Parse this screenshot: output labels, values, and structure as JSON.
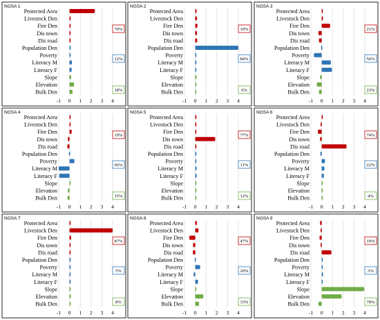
{
  "colors": {
    "economic": "#c00000",
    "social": "#2e75b6",
    "environmental": "#70ad47",
    "panel_border": "#222222",
    "grid": "#d9d9d9"
  },
  "chart_data": [
    {
      "type": "bar",
      "orientation": "horizontal",
      "title": "NGSA 1",
      "categories": [
        "Protected Area",
        "Livestock Den",
        "Fire Den",
        "Dis town",
        "Dis road",
        "Population Den",
        "Poverty",
        "Literacy M",
        "Literacy F",
        "Slope",
        "Elevation",
        "Bulk Den"
      ],
      "groups": [
        "economic",
        "economic",
        "economic",
        "economic",
        "economic",
        "social",
        "social",
        "social",
        "social",
        "environmental",
        "environmental",
        "environmental"
      ],
      "values": [
        2.35,
        0.06,
        0.07,
        0.05,
        0.05,
        0.06,
        0.07,
        0.22,
        0.2,
        0.15,
        0.42,
        0.28
      ],
      "xlim": [
        -1,
        4
      ],
      "xticks": [
        "-1",
        "0",
        "1",
        "2",
        "3",
        "4"
      ],
      "shares": [
        "70%",
        "12%",
        "18%"
      ]
    },
    {
      "type": "bar",
      "orientation": "horizontal",
      "title": "NGSA 2",
      "categories": [
        "Protected Area",
        "Livestock Den",
        "Fire Den",
        "Dis town",
        "Dis road",
        "Population Den",
        "Poverty",
        "Literacy M",
        "Literacy F",
        "Slope",
        "Elevation",
        "Bulk Den"
      ],
      "groups": [
        "economic",
        "economic",
        "economic",
        "economic",
        "economic",
        "social",
        "social",
        "social",
        "social",
        "environmental",
        "environmental",
        "environmental"
      ],
      "values": [
        0.12,
        0.16,
        0.2,
        0.16,
        0.18,
        4.0,
        0.08,
        0.1,
        0.08,
        0.12,
        0.1,
        0.1
      ],
      "xlim": [
        -1,
        4
      ],
      "xticks": [
        "-1",
        "0",
        "1",
        "2",
        "3",
        "4"
      ],
      "shares": [
        "10%",
        "84%",
        "6%"
      ]
    },
    {
      "type": "bar",
      "orientation": "horizontal",
      "title": "NGSA 3",
      "categories": [
        "Protected Area",
        "Livestock Den",
        "Fire Den",
        "Dis town",
        "Dis road",
        "Population Den",
        "Poverty",
        "Literacy M",
        "Literacy F",
        "Slope",
        "Elevation",
        "Bulk Den"
      ],
      "groups": [
        "economic",
        "economic",
        "economic",
        "economic",
        "economic",
        "social",
        "social",
        "social",
        "social",
        "environmental",
        "environmental",
        "environmental"
      ],
      "values": [
        0.1,
        0.12,
        0.78,
        -0.3,
        -0.25,
        -0.05,
        -0.72,
        0.85,
        0.95,
        -0.15,
        -0.45,
        -0.25
      ],
      "xlim": [
        -1,
        4
      ],
      "xticks": [
        "-1",
        "0",
        "1",
        "2",
        "3",
        "4"
      ],
      "shares": [
        "21%",
        "56%",
        "23%"
      ]
    },
    {
      "type": "bar",
      "orientation": "horizontal",
      "title": "NGSA 4",
      "categories": [
        "Protected Area",
        "Livestock Den",
        "Fire Den",
        "Dis town",
        "Dis road",
        "Population Den",
        "Poverty",
        "Literacy M",
        "Literacy F",
        "Slope",
        "Elevation",
        "Bulk Den"
      ],
      "groups": [
        "economic",
        "economic",
        "economic",
        "economic",
        "economic",
        "social",
        "social",
        "social",
        "social",
        "environmental",
        "environmental",
        "environmental"
      ],
      "values": [
        0.1,
        0.05,
        0.2,
        -0.15,
        -0.2,
        -0.05,
        0.45,
        -1.0,
        -0.95,
        0.05,
        -0.15,
        -0.18
      ],
      "xlim": [
        -1,
        4
      ],
      "xticks": [
        "-1",
        "0",
        "1",
        "2",
        "3",
        "4"
      ],
      "shares": [
        "19%",
        "66%",
        "15%"
      ]
    },
    {
      "type": "bar",
      "orientation": "horizontal",
      "title": "NGSA 5",
      "categories": [
        "Protected Area",
        "Livestock Den",
        "Fire Den",
        "Dis town",
        "Dis road",
        "Population Den",
        "Poverty",
        "Literacy M",
        "Literacy F",
        "Slope",
        "Elevation",
        "Bulk Den"
      ],
      "groups": [
        "economic",
        "economic",
        "economic",
        "economic",
        "economic",
        "social",
        "social",
        "social",
        "social",
        "environmental",
        "environmental",
        "environmental"
      ],
      "values": [
        0.05,
        0.05,
        0.1,
        1.85,
        0.1,
        0.06,
        0.1,
        0.12,
        0.12,
        0.06,
        0.1,
        0.1
      ],
      "xlim": [
        -1,
        4
      ],
      "xticks": [
        "-1",
        "0",
        "1",
        "2",
        "3",
        "4"
      ],
      "shares": [
        "77%",
        "11%",
        "12%"
      ]
    },
    {
      "type": "bar",
      "orientation": "horizontal",
      "title": "NGSA 6",
      "categories": [
        "Protected Area",
        "Livestock Den",
        "Fire Den",
        "Dis town",
        "Dis road",
        "Population Den",
        "Poverty",
        "Literacy M",
        "Literacy F",
        "Slope",
        "Elevation",
        "Bulk Den"
      ],
      "groups": [
        "economic",
        "economic",
        "economic",
        "economic",
        "economic",
        "social",
        "social",
        "social",
        "social",
        "environmental",
        "environmental",
        "environmental"
      ],
      "values": [
        0.05,
        -0.1,
        -0.35,
        -0.15,
        2.3,
        -0.12,
        0.3,
        0.25,
        0.2,
        0.05,
        0.1,
        0.05
      ],
      "xlim": [
        -1,
        4
      ],
      "xticks": [
        "-1",
        "0",
        "1",
        "2",
        "3",
        "4"
      ],
      "shares": [
        "74%",
        "22%",
        "4%"
      ]
    },
    {
      "type": "bar",
      "orientation": "horizontal",
      "title": "NGSA 7",
      "categories": [
        "Protected Area",
        "Livestock Den",
        "Fire Den",
        "Dis town",
        "Dis road",
        "Population Den",
        "Poverty",
        "Literacy M",
        "Literacy F",
        "Slope",
        "Elevation",
        "Bulk Den"
      ],
      "groups": [
        "economic",
        "economic",
        "economic",
        "economic",
        "economic",
        "social",
        "social",
        "social",
        "social",
        "environmental",
        "environmental",
        "environmental"
      ],
      "values": [
        0.05,
        4.0,
        0.15,
        0.1,
        0.1,
        0.08,
        0.1,
        0.05,
        0.05,
        0.08,
        0.12,
        0.1
      ],
      "xlim": [
        -1,
        4
      ],
      "xticks": [
        "-1",
        "0",
        "1",
        "2",
        "3",
        "4"
      ],
      "shares": [
        "87%",
        "5%",
        "8%"
      ]
    },
    {
      "type": "bar",
      "orientation": "horizontal",
      "title": "NGSA 8",
      "categories": [
        "Protected Area",
        "Livestock Den",
        "Fire Den",
        "Dis town",
        "Dis road",
        "Population Den",
        "Poverty",
        "Literacy M",
        "Literacy F",
        "Slope",
        "Elevation",
        "Bulk Den"
      ],
      "groups": [
        "economic",
        "economic",
        "economic",
        "economic",
        "economic",
        "social",
        "social",
        "social",
        "social",
        "environmental",
        "environmental",
        "environmental"
      ],
      "values": [
        0.15,
        0.3,
        -0.55,
        -0.2,
        -0.22,
        -0.05,
        0.45,
        -0.15,
        0.25,
        0.05,
        0.75,
        0.35
      ],
      "xlim": [
        -1,
        4
      ],
      "xticks": [
        "-1",
        "0",
        "1",
        "2",
        "3",
        "4"
      ],
      "shares": [
        "47%",
        "20%",
        "33%"
      ]
    },
    {
      "type": "bar",
      "orientation": "horizontal",
      "title": "NGSA 9",
      "categories": [
        "Protected Area",
        "Livestock Den",
        "Fire Den",
        "Dis town",
        "Dis road",
        "Population Den",
        "Poverty",
        "Literacy M",
        "Literacy F",
        "Slope",
        "Elevation",
        "Bulk Den"
      ],
      "groups": [
        "economic",
        "economic",
        "economic",
        "economic",
        "economic",
        "social",
        "social",
        "social",
        "social",
        "environmental",
        "environmental",
        "environmental"
      ],
      "values": [
        -0.15,
        -0.1,
        -0.2,
        -0.1,
        0.9,
        0.05,
        0.1,
        0.12,
        0.1,
        3.95,
        1.85,
        -0.3
      ],
      "xlim": [
        -1,
        4
      ],
      "xticks": [
        "-1",
        "0",
        "1",
        "2",
        "3",
        "4"
      ],
      "shares": [
        "19%",
        "3%",
        "78%"
      ]
    }
  ]
}
